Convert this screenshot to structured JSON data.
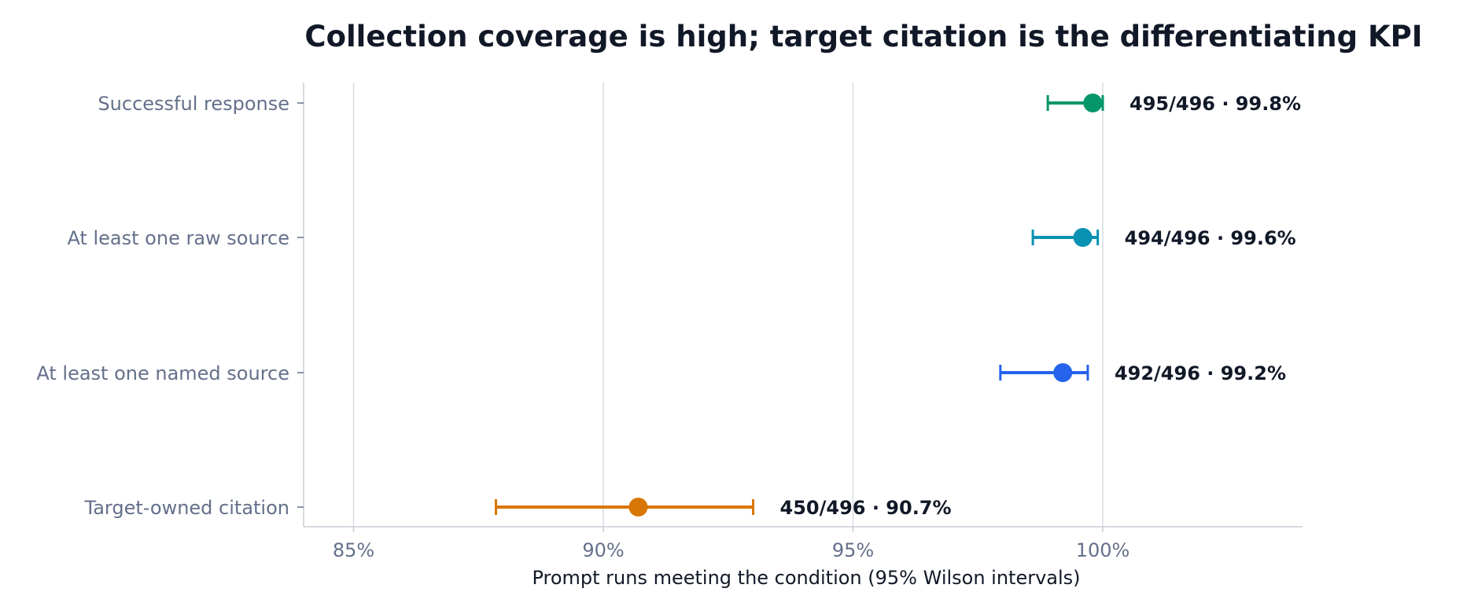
{
  "chart_data": {
    "type": "scatter",
    "title": "Collection coverage is high; target citation is the differentiating KPI",
    "xlabel": "Prompt runs meeting the condition (95% Wilson intervals)",
    "ylabel": "",
    "xlim": [
      84,
      104
    ],
    "x_ticks": [
      {
        "value": 85,
        "label": "85%"
      },
      {
        "value": 90,
        "label": "90%"
      },
      {
        "value": 95,
        "label": "95%"
      },
      {
        "value": 100,
        "label": "100%"
      }
    ],
    "grid": "vertical",
    "series": [
      {
        "category": "Successful response",
        "value": 99.8,
        "ci_low": 98.9,
        "ci_high": 100.0,
        "label": "495/496  ·  99.8%",
        "color": "#059669"
      },
      {
        "category": "At least one raw source",
        "value": 99.6,
        "ci_low": 98.6,
        "ci_high": 99.9,
        "label": "494/496  ·  99.6%",
        "color": "#0891b2"
      },
      {
        "category": "At least one named source",
        "value": 99.2,
        "ci_low": 97.95,
        "ci_high": 99.7,
        "label": "492/496  ·  99.2%",
        "color": "#2563eb"
      },
      {
        "category": "Target-owned citation",
        "value": 90.7,
        "ci_low": 87.85,
        "ci_high": 93.0,
        "label": "450/496  ·  90.7%",
        "color": "#d97706"
      }
    ],
    "colors": {
      "grid": "#d7dbe1",
      "axis": "#c9ced6",
      "tick_text": "#64708a",
      "title_text": "#111827"
    }
  }
}
